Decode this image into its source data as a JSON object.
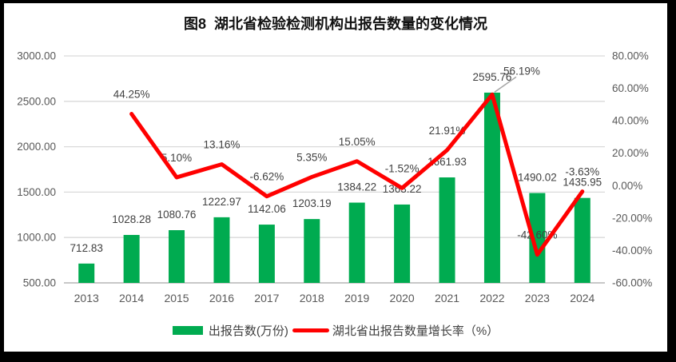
{
  "title": "图8  湖北省检验检测机构出报告数量的变化情况",
  "legend": {
    "items": [
      {
        "label": "出报告数(万份)",
        "type": "bar",
        "color": "#00AB50"
      },
      {
        "label": "湖北省出报告数量增长率（%）",
        "type": "line",
        "color": "#FF0000"
      }
    ],
    "position": "bottom"
  },
  "colors": {
    "bar": "#00AB50",
    "line": "#FF0000",
    "grid": "#D9D9D9",
    "baseline": "#C8C8C8",
    "axis_text": "#595959",
    "label_text": "#404040",
    "leader": "#A6A6A6",
    "frame": "#000000",
    "background": "#FFFFFF"
  },
  "chart_data": {
    "type": "combo-bar-line",
    "title": "图8  湖北省检验检测机构出报告数量的变化情况",
    "categories": [
      "2013",
      "2014",
      "2015",
      "2016",
      "2017",
      "2018",
      "2019",
      "2020",
      "2021",
      "2022",
      "2023",
      "2024"
    ],
    "series": [
      {
        "name": "出报告数(万份)",
        "type": "bar",
        "axis": "left",
        "color": "#00AB50",
        "values": [
          712.83,
          1028.28,
          1080.76,
          1222.97,
          1142.06,
          1203.19,
          1384.22,
          1363.22,
          1661.93,
          2595.76,
          1490.02,
          1435.95
        ],
        "data_labels": [
          "712.83",
          "1028.28",
          "1080.76",
          "1222.97",
          "1142.06",
          "1203.19",
          "1384.22",
          "1363.22",
          "1661.93",
          "2595.76",
          "1490.02",
          "1435.95"
        ]
      },
      {
        "name": "湖北省出报告数量增长率（%）",
        "type": "line",
        "axis": "right",
        "color": "#FF0000",
        "values": [
          null,
          44.25,
          5.1,
          13.16,
          -6.62,
          5.35,
          15.05,
          -1.52,
          21.91,
          56.19,
          -42.6,
          -3.63
        ],
        "data_labels": [
          null,
          "44.25%",
          "5.10%",
          "13.16%",
          "-6.62%",
          "5.35%",
          "15.05%",
          "-1.52%",
          "21.91%",
          "56.19%",
          "-42.60%",
          "-3.63%"
        ]
      }
    ],
    "left_axis": {
      "min": 500,
      "max": 3000,
      "ticks": [
        "500.00",
        "1000.00",
        "1500.00",
        "2000.00",
        "2500.00",
        "3000.00"
      ]
    },
    "right_axis": {
      "min": -60,
      "max": 80,
      "ticks": [
        "-60.00%",
        "-40.00%",
        "-20.00%",
        "0.00%",
        "20.00%",
        "40.00%",
        "60.00%",
        "80.00%"
      ]
    },
    "grid": true,
    "legend_position": "bottom",
    "callout": {
      "series_index": 1,
      "category": "2022",
      "label": "56.19%",
      "leader_color": "#A6A6A6"
    }
  }
}
